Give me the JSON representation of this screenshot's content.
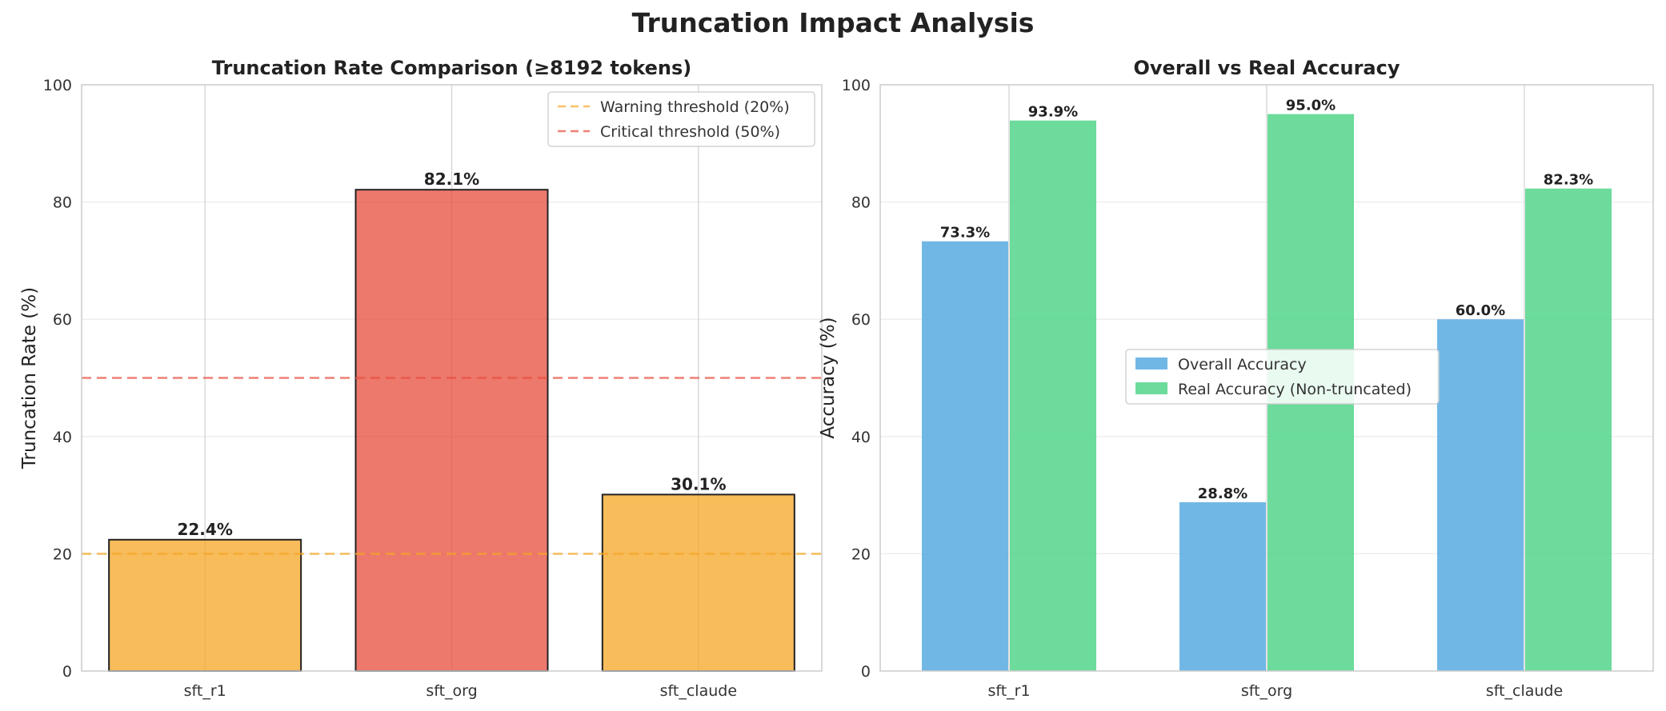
{
  "figure": {
    "suptitle": "Truncation Impact Analysis"
  },
  "colors": {
    "warning": "#f5a623",
    "critical": "#e74c3c",
    "overall": "#5dade2",
    "real": "#58d68d",
    "edge": "#222222"
  },
  "chart_data": [
    {
      "type": "bar",
      "title": "Truncation Rate Comparison (≥8192 tokens)",
      "xlabel": "",
      "ylabel": "Truncation Rate (%)",
      "ylim": [
        0,
        100
      ],
      "yticks": [
        "0",
        "20",
        "40",
        "60",
        "80",
        "100"
      ],
      "categories": [
        "sft_r1",
        "sft_org",
        "sft_claude"
      ],
      "values": [
        22.4,
        82.1,
        30.1
      ],
      "value_labels": [
        "22.4%",
        "82.1%",
        "30.1%"
      ],
      "bar_colors": [
        "warning",
        "critical",
        "warning"
      ],
      "thresholds": [
        {
          "name": "Warning threshold (20%)",
          "value": 20,
          "color": "warning"
        },
        {
          "name": "Critical threshold (50%)",
          "value": 50,
          "color": "critical"
        }
      ],
      "legend_position": "upper-right",
      "grid": true
    },
    {
      "type": "bar",
      "title": "Overall vs Real Accuracy",
      "xlabel": "",
      "ylabel": "Accuracy (%)",
      "ylim": [
        0,
        100
      ],
      "yticks": [
        "0",
        "20",
        "40",
        "60",
        "80",
        "100"
      ],
      "categories": [
        "sft_r1",
        "sft_org",
        "sft_claude"
      ],
      "series": [
        {
          "name": "Overall Accuracy",
          "values": [
            73.3,
            28.8,
            60.0
          ],
          "labels": [
            "73.3%",
            "28.8%",
            "60.0%"
          ],
          "color": "overall"
        },
        {
          "name": "Real Accuracy (Non-truncated)",
          "values": [
            93.9,
            95.0,
            82.3
          ],
          "labels": [
            "93.9%",
            "95.0%",
            "82.3%"
          ],
          "color": "real"
        }
      ],
      "legend_position": "center",
      "grid": true
    }
  ]
}
